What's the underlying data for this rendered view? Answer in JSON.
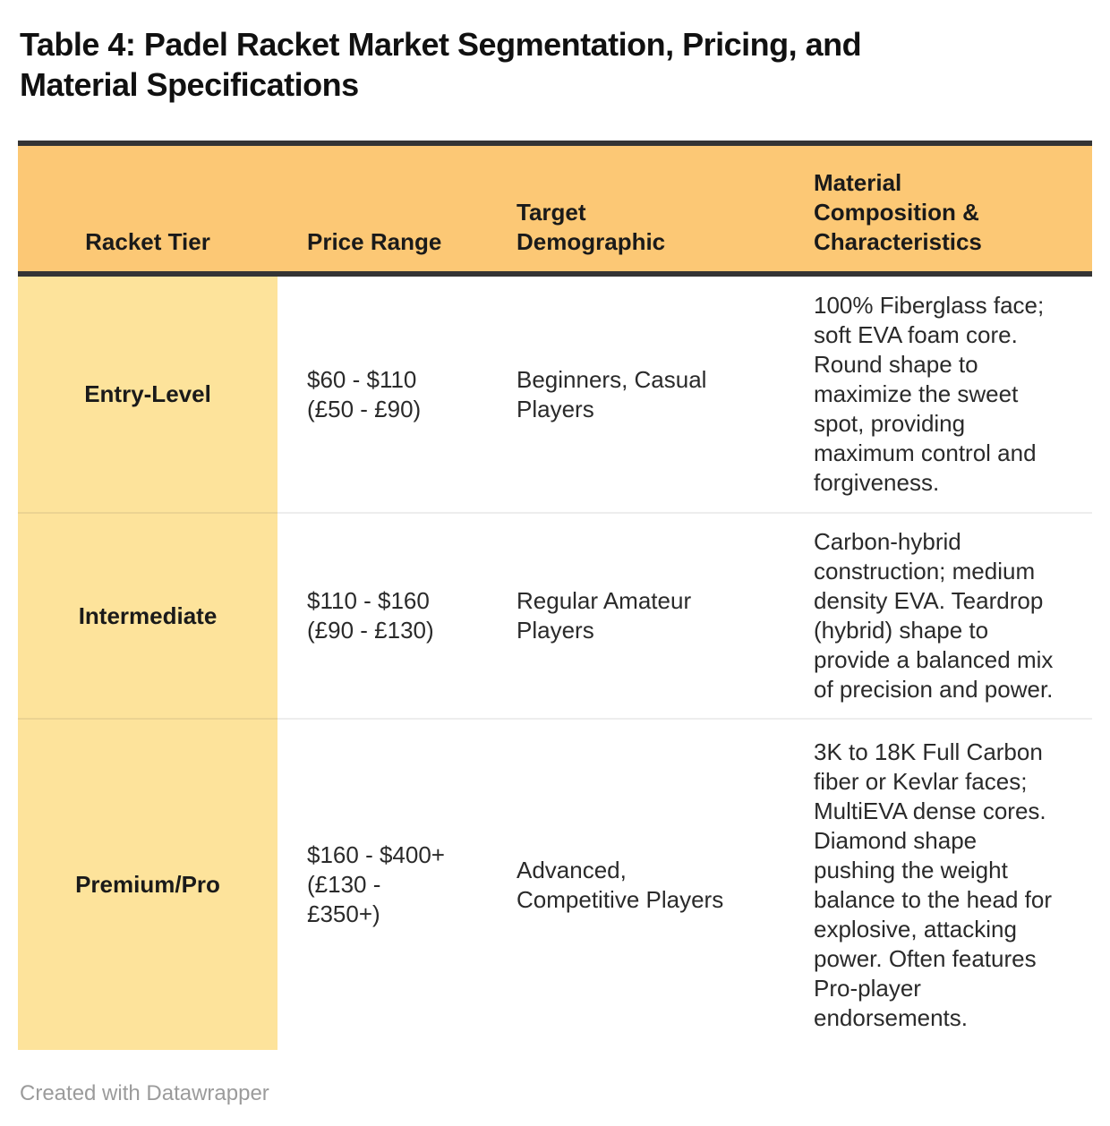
{
  "chart_data": {
    "type": "table",
    "title": "Table 4: Padel Racket Market Segmentation, Pricing, and Material Specifications",
    "columns": [
      "Racket Tier",
      "Price Range",
      "Target Demographic",
      "Material Composition & Characteristics"
    ],
    "rows": [
      [
        "Entry-Level",
        "$60 - $110 (£50 - £90)",
        "Beginners, Casual Players",
        "100% Fiberglass face; soft EVA foam core. Round shape to maximize the sweet spot, providing maximum control and forgiveness."
      ],
      [
        "Intermediate",
        "$110 - $160 (£90 - £130)",
        "Regular Amateur Players",
        "Carbon-hybrid construction; medium density EVA. Teardrop (hybrid) shape to provide a balanced mix of precision and power."
      ],
      [
        "Premium/Pro",
        "$160 - $400+ (£130 - £350+)",
        "Advanced, Competitive Players",
        "3K to 18K Full Carbon fiber or Kevlar faces; MultiEVA dense cores. Diamond shape pushing the weight balance to the head for explosive, attacking power. Often features Pro-player endorsements."
      ]
    ],
    "credit": "Created with Datawrapper",
    "layout_hints": {
      "header_bg": "#FCC875",
      "tier_column_bg": "#FDE39B",
      "rule_bar_color": "#343434",
      "separator_color": "#E8E8E8",
      "credit_color": "#9B9B9B"
    }
  },
  "display": {
    "title": "Table 4: Padel Racket Market Segmentation, Pricing, and\nMaterial Specifications",
    "columns": [
      "Racket Tier",
      "Price Range",
      "Target\nDemographic",
      "Material\nComposition &\nCharacteristics"
    ],
    "rows": [
      {
        "tier": "Entry-Level",
        "price": "$60 - $110\n(£50 - £90)",
        "demographic": "Beginners, Casual\nPlayers",
        "material": "100% Fiberglass face;\nsoft EVA foam core.\nRound shape to\nmaximize the sweet\nspot, providing\nmaximum control and\nforgiveness."
      },
      {
        "tier": "Intermediate",
        "price": "$110 - $160\n(£90 - £130)",
        "demographic": "Regular Amateur\nPlayers",
        "material": "Carbon-hybrid\nconstruction; medium\ndensity EVA. Teardrop\n(hybrid) shape to\nprovide a balanced mix\nof precision and power."
      },
      {
        "tier": "Premium/Pro",
        "price": "$160 - $400+\n(£130 -\n£350+)",
        "demographic": "Advanced,\nCompetitive Players",
        "material": "3K to 18K Full Carbon\nfiber or Kevlar faces;\nMultiEVA dense cores.\nDiamond shape\npushing the weight\nbalance to the head for\nexplosive, attacking\npower. Often features\nPro-player\nendorsements."
      }
    ],
    "footer": "Created with Datawrapper"
  }
}
